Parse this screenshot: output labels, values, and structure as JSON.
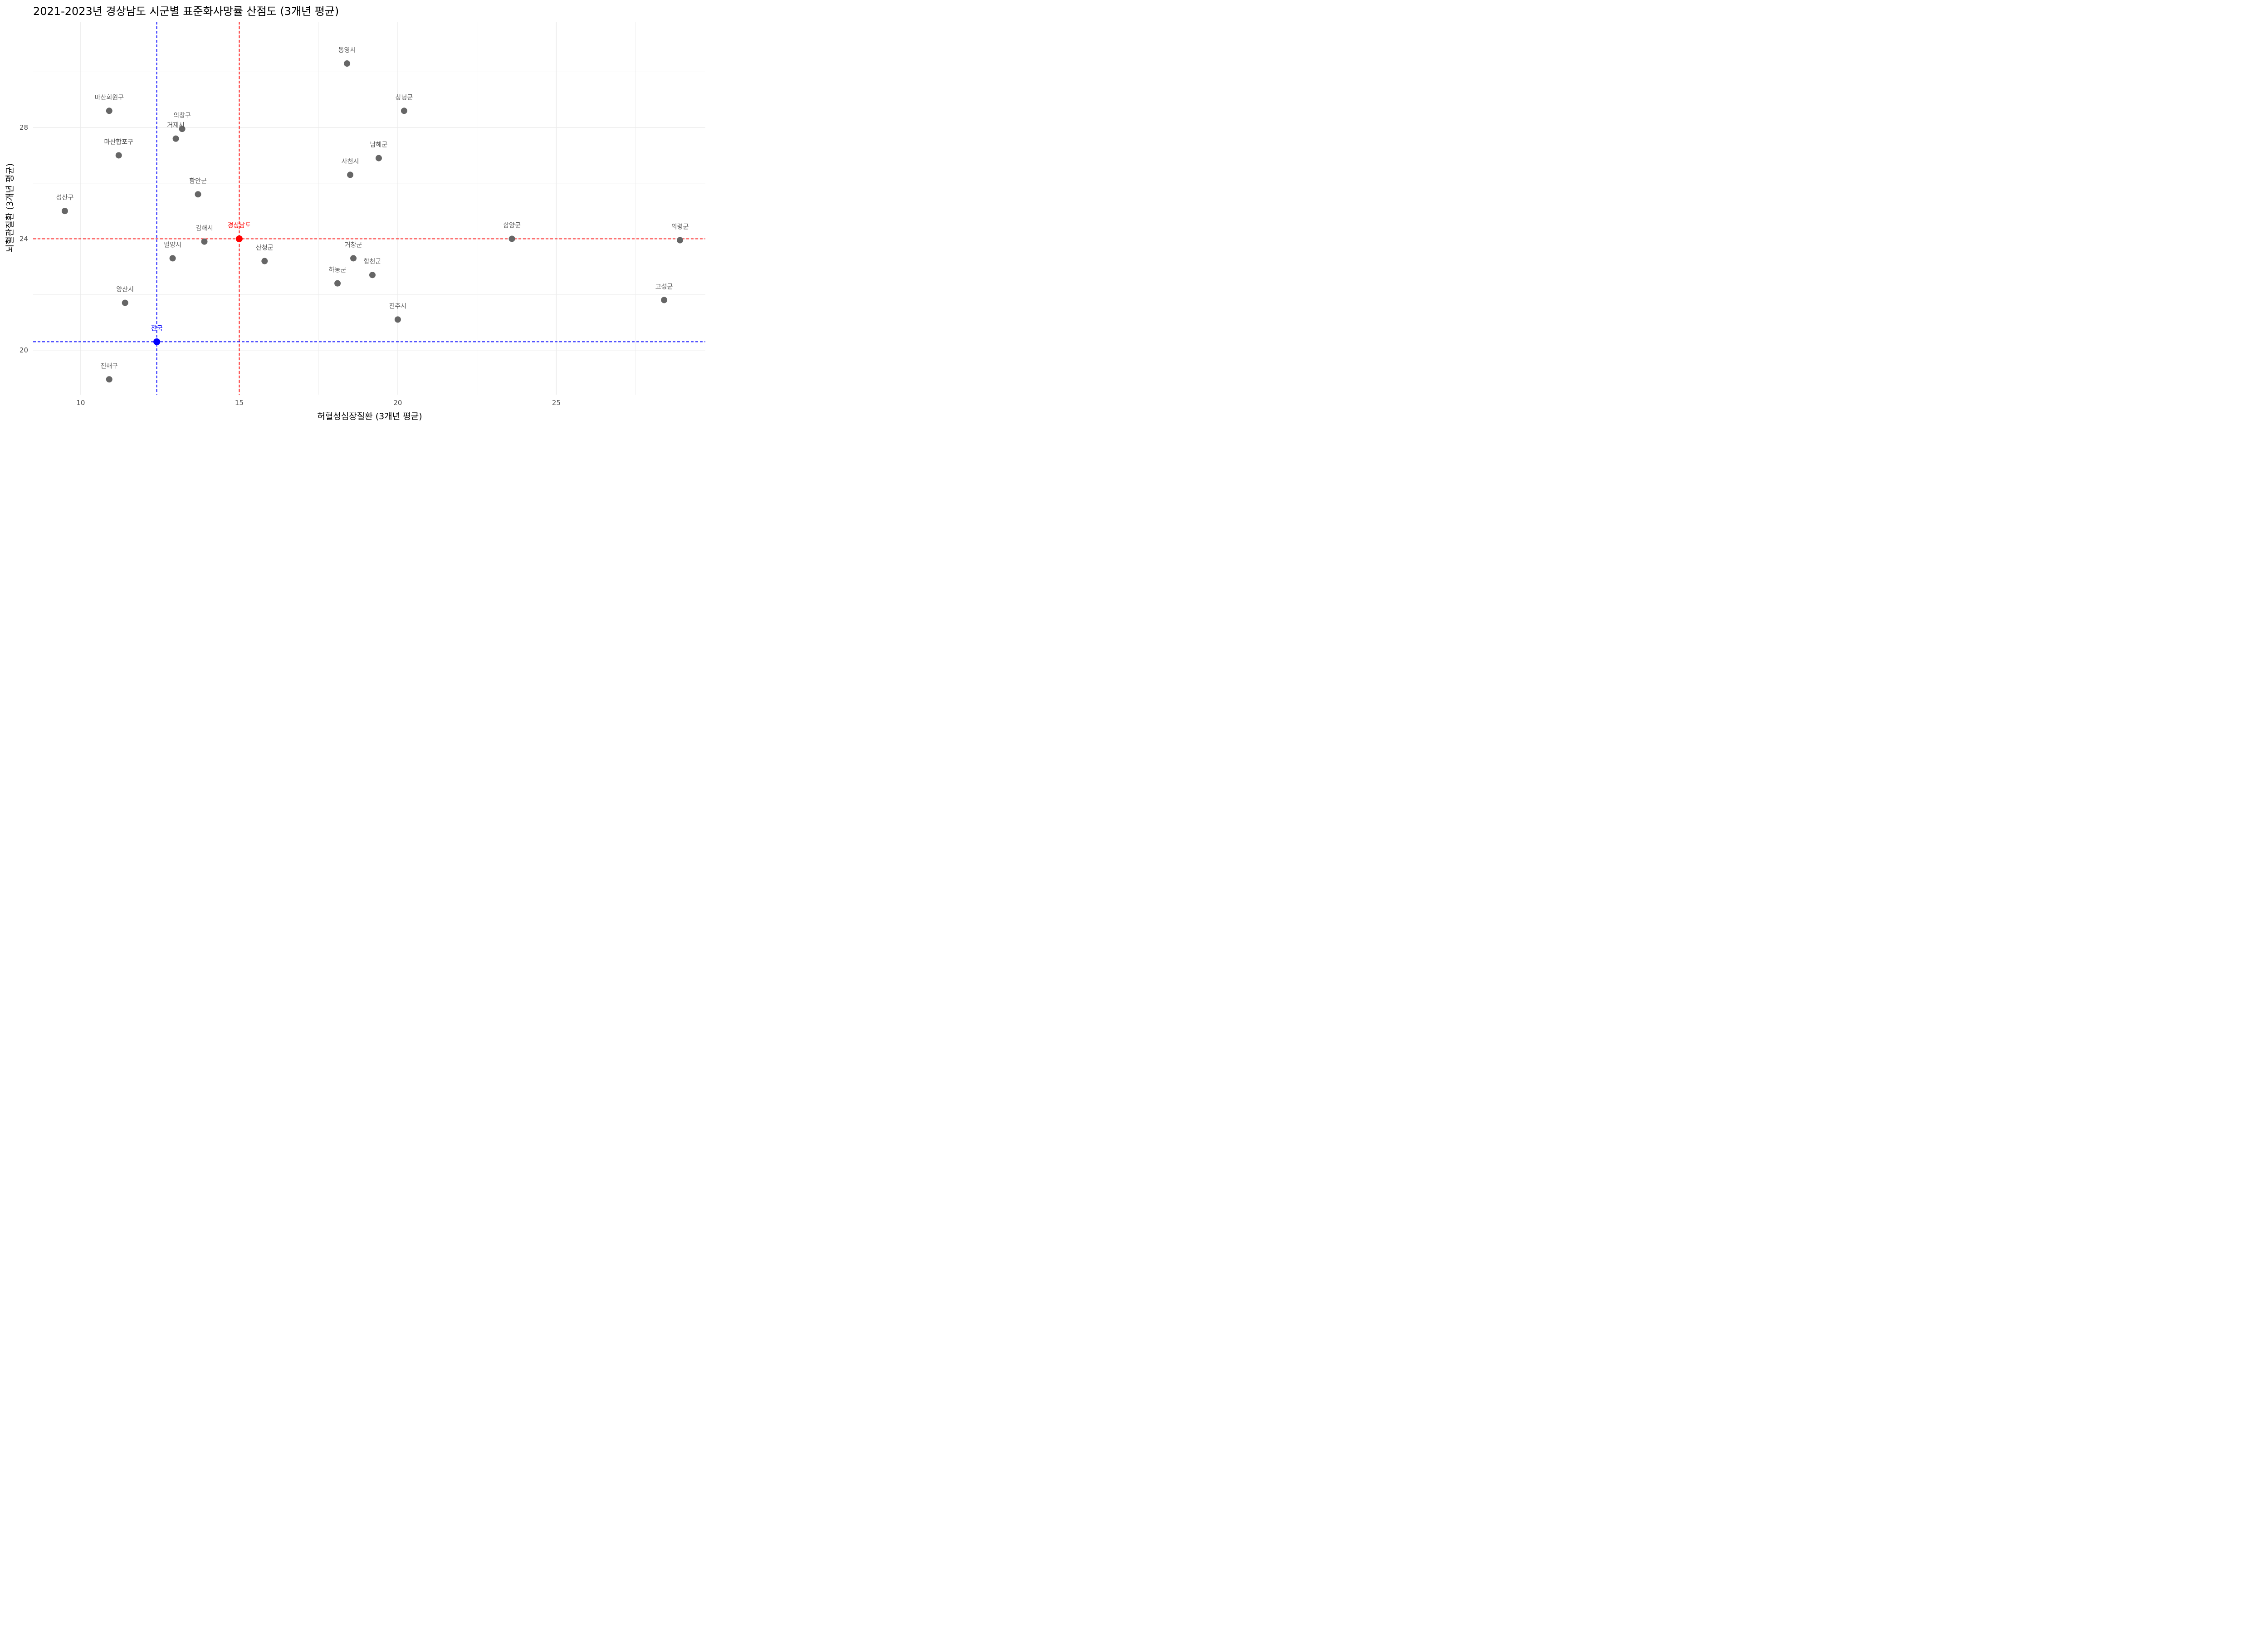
{
  "chart_data": {
    "type": "scatter",
    "title": "2021-2023년 경상남도 시군별 표준화사망률 산점도 (3개년 평균)",
    "xlabel": "허혈성심장질환 (3개년 평균)",
    "ylabel": "뇌혈관질환 (3개년 평균)",
    "xlim": [
      8.5,
      29.7
    ],
    "ylim": [
      18.4,
      31.8
    ],
    "xticks": [
      10,
      15,
      20,
      25
    ],
    "yticks": [
      20,
      24,
      28
    ],
    "grid": true,
    "legend": "none",
    "colors": {
      "points": "#666666",
      "gyeongnam": "#ff0000",
      "national": "#0000ff",
      "grid": "#ebebeb"
    },
    "points": [
      {
        "label": "통영시",
        "x": 18.4,
        "y": 30.3
      },
      {
        "label": "마산회원구",
        "x": 10.9,
        "y": 28.6
      },
      {
        "label": "창녕군",
        "x": 20.2,
        "y": 28.6
      },
      {
        "label": "의창구",
        "x": 13.2,
        "y": 27.95
      },
      {
        "label": "거제시",
        "x": 13.0,
        "y": 27.6
      },
      {
        "label": "마산합포구",
        "x": 11.2,
        "y": 27.0
      },
      {
        "label": "남해군",
        "x": 19.4,
        "y": 26.9
      },
      {
        "label": "사천시",
        "x": 18.5,
        "y": 26.3
      },
      {
        "label": "함안군",
        "x": 13.7,
        "y": 25.6
      },
      {
        "label": "성산구",
        "x": 9.5,
        "y": 25.0
      },
      {
        "label": "함양군",
        "x": 23.6,
        "y": 24.0
      },
      {
        "label": "의령군",
        "x": 28.9,
        "y": 23.95
      },
      {
        "label": "김해시",
        "x": 13.9,
        "y": 23.9
      },
      {
        "label": "밀양시",
        "x": 12.9,
        "y": 23.3
      },
      {
        "label": "거창군",
        "x": 18.6,
        "y": 23.3
      },
      {
        "label": "산청군",
        "x": 15.8,
        "y": 23.2
      },
      {
        "label": "합천군",
        "x": 19.2,
        "y": 22.7
      },
      {
        "label": "하동군",
        "x": 18.1,
        "y": 22.4
      },
      {
        "label": "고성군",
        "x": 28.4,
        "y": 21.8
      },
      {
        "label": "양산시",
        "x": 11.4,
        "y": 21.7
      },
      {
        "label": "진주시",
        "x": 20.0,
        "y": 21.1
      },
      {
        "label": "진해구",
        "x": 10.9,
        "y": 18.95
      }
    ],
    "reference_points": [
      {
        "label": "경상남도",
        "x": 15.0,
        "y": 24.0,
        "color": "#ff0000"
      },
      {
        "label": "전국",
        "x": 12.4,
        "y": 20.3,
        "color": "#0000ff"
      }
    ]
  }
}
